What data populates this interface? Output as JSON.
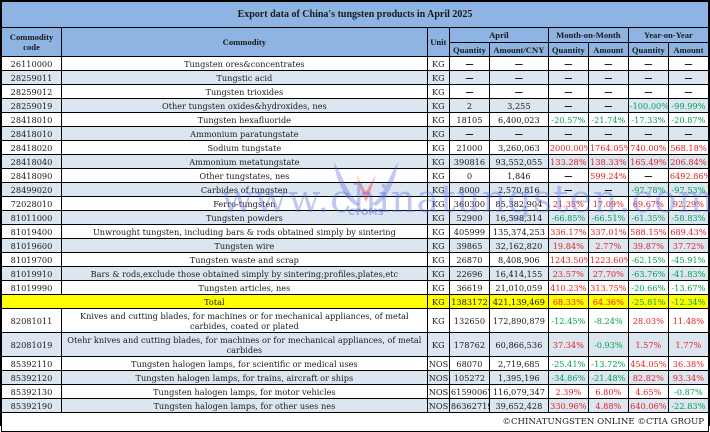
{
  "title": "Export data of China's tungsten products in April 2025",
  "headers": {
    "code": "Commodity code",
    "commodity": "Commodity",
    "unit": "Unit",
    "group_april": "April",
    "group_mom": "Month-on-Month",
    "group_yoy": "Year-on-Year",
    "quantity": "Quantity",
    "amount_cny": "Amount/CNY",
    "amount": "Amount"
  },
  "rows": [
    {
      "code": "26110000",
      "commodity": "Tungsten ores&concentrates",
      "unit": "KG",
      "qty": "—",
      "amt": "—",
      "mom_qty": "—",
      "mom_amt": "—",
      "yoy_qty": "—",
      "yoy_amt": "—"
    },
    {
      "code": "28259011",
      "commodity": "Tungstic acid",
      "unit": "KG",
      "qty": "—",
      "amt": "—",
      "mom_qty": "—",
      "mom_amt": "—",
      "yoy_qty": "—",
      "yoy_amt": "—"
    },
    {
      "code": "28259012",
      "commodity": "Tungsten trioxides",
      "unit": "KG",
      "qty": "—",
      "amt": "—",
      "mom_qty": "—",
      "mom_amt": "—",
      "yoy_qty": "—",
      "yoy_amt": "—"
    },
    {
      "code": "28259019",
      "commodity": "Other tungsten oxides&hydroxides, nes",
      "unit": "KG",
      "qty": "2",
      "amt": "3,255",
      "mom_qty": "—",
      "mom_amt": "—",
      "yoy_qty": "-100.00%",
      "yoy_amt": "-99.99%"
    },
    {
      "code": "28418010",
      "commodity": "Tungsten hexafluoride",
      "unit": "KG",
      "qty": "18105",
      "amt": "6,400,023",
      "mom_qty": "-20.57%",
      "mom_amt": "-21.74%",
      "yoy_qty": "-17.33%",
      "yoy_amt": "-20.87%"
    },
    {
      "code": "28418010",
      "commodity": "Ammonium paratungstate",
      "unit": "KG",
      "qty": "—",
      "amt": "—",
      "mom_qty": "—",
      "mom_amt": "—",
      "yoy_qty": "—",
      "yoy_amt": "—"
    },
    {
      "code": "28418020",
      "commodity": "Sodium tungstate",
      "unit": "KG",
      "qty": "21000",
      "amt": "3,260,063",
      "mom_qty": "2000.00%",
      "mom_amt": "1764.05%",
      "yoy_qty": "740.00%",
      "yoy_amt": "568.18%"
    },
    {
      "code": "28418040",
      "commodity": "Ammonium metatungstate",
      "unit": "KG",
      "qty": "390816",
      "amt": "93,552,055",
      "mom_qty": "133.28%",
      "mom_amt": "138.33%",
      "yoy_qty": "165.49%",
      "yoy_amt": "206.84%"
    },
    {
      "code": "28418090",
      "commodity": "Other tungstates, nes",
      "unit": "KG",
      "qty": "0",
      "amt": "1,846",
      "mom_qty": "—",
      "mom_amt": "599.24%",
      "yoy_qty": "—",
      "yoy_amt": "6492.86%"
    },
    {
      "code": "28499020",
      "commodity": "Carbides of tungsten",
      "unit": "KG",
      "qty": "8000",
      "amt": "2,570,816",
      "mom_qty": "—",
      "mom_amt": "—",
      "yoy_qty": "-97.78%",
      "yoy_amt": "-97.53%"
    },
    {
      "code": "72028010",
      "commodity": "Ferro-tungsten",
      "unit": "KG",
      "qty": "360300",
      "amt": "85,382,904",
      "mom_qty": "21.35%",
      "mom_amt": "17.09%",
      "yoy_qty": "69.67%",
      "yoy_amt": "92.29%"
    },
    {
      "code": "81011000",
      "commodity": "Tungsten powders",
      "unit": "KG",
      "qty": "52900",
      "amt": "16,598,314",
      "mom_qty": "-66.85%",
      "mom_amt": "-66.51%",
      "yoy_qty": "-61.35%",
      "yoy_amt": "-58.83%"
    },
    {
      "code": "81019400",
      "commodity": "Unwrought tungsten, including bars & rods obtained simply by sintering",
      "unit": "KG",
      "qty": "405999",
      "amt": "135,374,253",
      "mom_qty": "336.17%",
      "mom_amt": "337.01%",
      "yoy_qty": "588.15%",
      "yoy_amt": "689.43%"
    },
    {
      "code": "81019600",
      "commodity": "Tungsten wire",
      "unit": "KG",
      "qty": "39865",
      "amt": "32,162,820",
      "mom_qty": "19.84%",
      "mom_amt": "2.77%",
      "yoy_qty": "39.87%",
      "yoy_amt": "37.72%"
    },
    {
      "code": "81019700",
      "commodity": "Tungsten waste and scrap",
      "unit": "KG",
      "qty": "26870",
      "amt": "8,408,906",
      "mom_qty": "1243.50%",
      "mom_amt": "1223.60%",
      "yoy_qty": "-62.15%",
      "yoy_amt": "-45.91%"
    },
    {
      "code": "81019910",
      "commodity": "Bars & rods,exclude those obtained simply by sintering;profiles,plates,etc",
      "unit": "KG",
      "qty": "22696",
      "amt": "16,414,155",
      "mom_qty": "23.57%",
      "mom_amt": "27.70%",
      "yoy_qty": "-63.76%",
      "yoy_amt": "-41.83%"
    },
    {
      "code": "81019990",
      "commodity": "Tungsten articles, nes",
      "unit": "KG",
      "qty": "36619",
      "amt": "21,010,059",
      "mom_qty": "410.23%",
      "mom_amt": "313.75%",
      "yoy_qty": "-20.66%",
      "yoy_amt": "-13.67%"
    }
  ],
  "total": {
    "label": "Total",
    "unit": "KG",
    "qty": "1383172",
    "amt": "421,139,469",
    "mom_qty": "68.33%",
    "mom_amt": "64.36%",
    "yoy_qty": "-25.81%",
    "yoy_amt": "-12.34%"
  },
  "rows2": [
    {
      "code": "82081011",
      "commodity": "Knives and cutting blades, for machines or for mechanical appliances, of metal carbides, coated or plated",
      "unit": "KG",
      "qty": "132650",
      "amt": "172,890,879",
      "mom_qty": "-12.45%",
      "mom_amt": "-8.24%",
      "yoy_qty": "28.03%",
      "yoy_amt": "11.48%"
    },
    {
      "code": "82081019",
      "commodity": "Otehr knives and cutting blades, for machines or for mechanical appliances, of metal carbides",
      "unit": "KG",
      "qty": "178762",
      "amt": "60,866,536",
      "mom_qty": "37.34%",
      "mom_amt": "-0.93%",
      "yoy_qty": "1.57%",
      "yoy_amt": "1.77%"
    },
    {
      "code": "85392110",
      "commodity": "Tungsten halogen lamps, for scientific or medical uses",
      "unit": "NOS",
      "qty": "68070",
      "amt": "2,719,685",
      "mom_qty": "-25.41%",
      "mom_amt": "-13.72%",
      "yoy_qty": "454.05%",
      "yoy_amt": "36.38%"
    },
    {
      "code": "85392120",
      "commodity": "Tungsten halogen lamps, for trains, aircraft or ships",
      "unit": "NOS",
      "qty": "105272",
      "amt": "1,395,196",
      "mom_qty": "-34.86%",
      "mom_amt": "-21.48%",
      "yoy_qty": "82.82%",
      "yoy_amt": "93.34%"
    },
    {
      "code": "85392130",
      "commodity": "Tungsten halogen lamps, for motor vehicles",
      "unit": "NOS",
      "qty": "61590067",
      "amt": "116,079,347",
      "mom_qty": "2.39%",
      "mom_amt": "6.80%",
      "yoy_qty": "4.65%",
      "yoy_amt": "-0.87%"
    },
    {
      "code": "85392190",
      "commodity": "Tungsten halogen lamps, for other uses nes",
      "unit": "NOS",
      "qty": "86362719",
      "amt": "39,652,428",
      "mom_qty": "330.96%",
      "mom_amt": "4.88%",
      "yoy_qty": "640.06%",
      "yoy_amt": "-22.83%"
    }
  ],
  "footer": "©CHINATUNGSTEN ONLINE  ©CTIA GROUP",
  "watermark": {
    "text": "www.chinatungsten.com",
    "logo_label": "CTOMS"
  },
  "colors": {
    "header_bg": "#8db4e2",
    "alt_row_bg": "#dce6f1",
    "total_bg": "#ffff00",
    "negative": "#00a050",
    "positive": "#e82020"
  }
}
